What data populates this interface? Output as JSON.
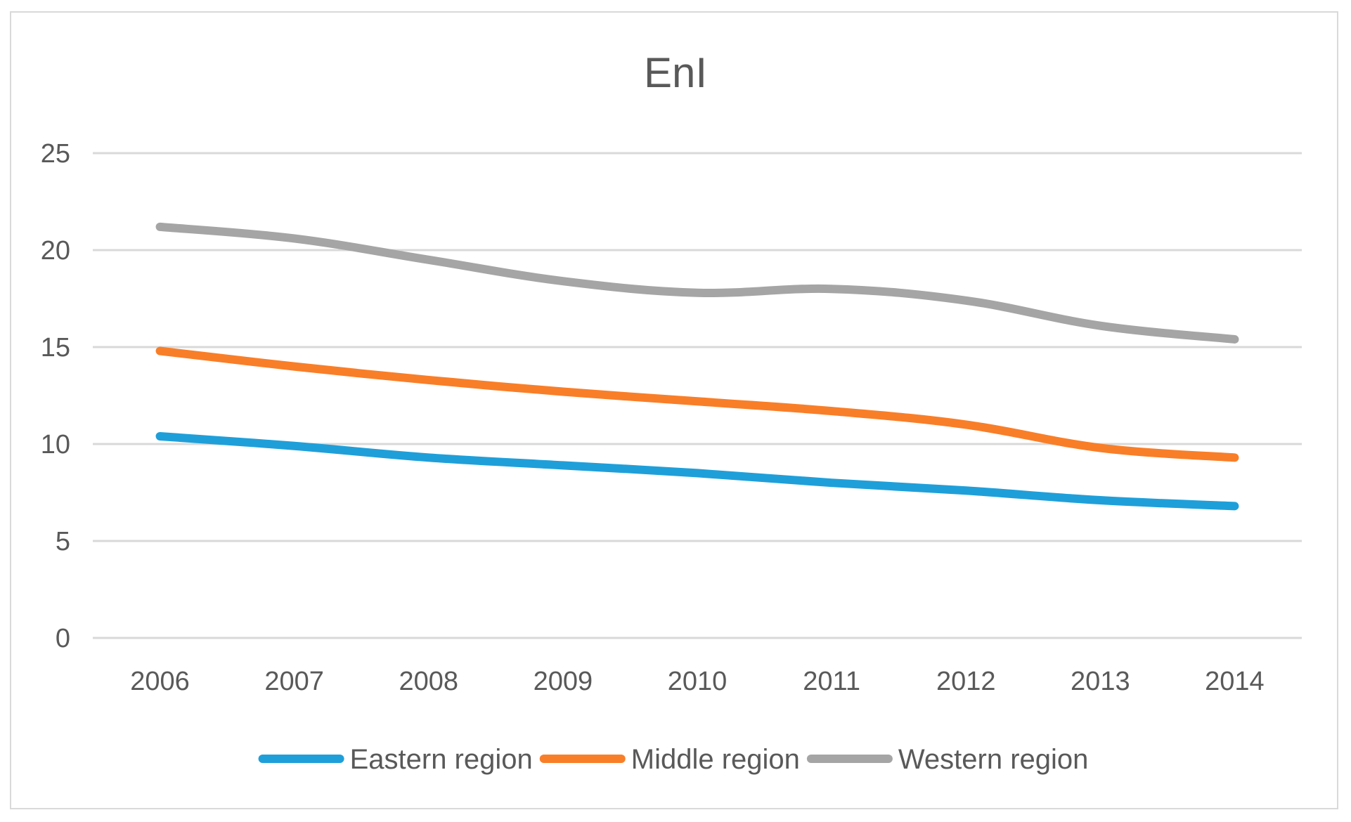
{
  "chart_data": {
    "type": "line",
    "title": "EnI",
    "xlabel": "",
    "ylabel": "",
    "categories": [
      "2006",
      "2007",
      "2008",
      "2009",
      "2010",
      "2011",
      "2012",
      "2013",
      "2014"
    ],
    "ylim": [
      0,
      25
    ],
    "yticks": [
      0,
      5,
      10,
      15,
      20,
      25
    ],
    "grid": true,
    "legend_position": "bottom",
    "series": [
      {
        "name": "Eastern region",
        "color": "#1f9fd9",
        "values": [
          10.4,
          9.9,
          9.3,
          8.9,
          8.5,
          8.0,
          7.6,
          7.1,
          6.8
        ]
      },
      {
        "name": "Middle region",
        "color": "#f97e28",
        "values": [
          14.8,
          14.0,
          13.3,
          12.7,
          12.2,
          11.7,
          11.0,
          9.8,
          9.3
        ]
      },
      {
        "name": "Western region",
        "color": "#a5a5a5",
        "values": [
          21.2,
          20.6,
          19.5,
          18.4,
          17.8,
          18.0,
          17.4,
          16.1,
          15.4
        ]
      }
    ]
  }
}
